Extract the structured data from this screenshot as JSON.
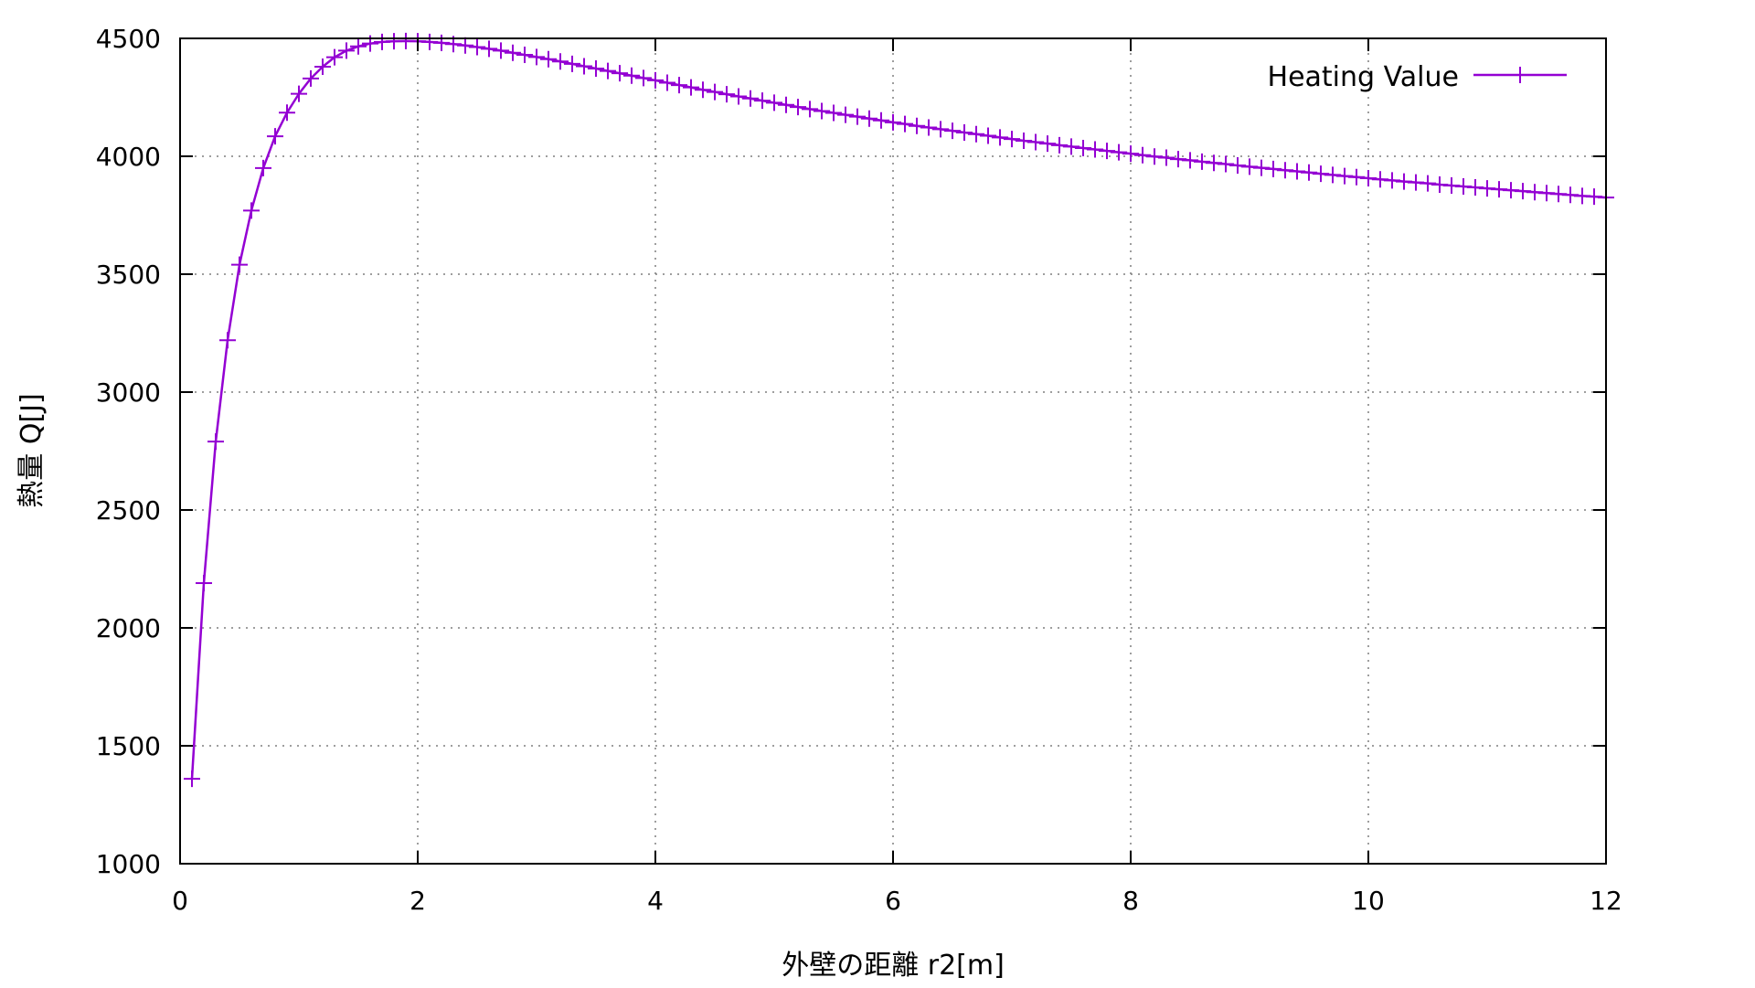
{
  "chart_data": {
    "type": "line",
    "title": "",
    "xlabel": "外壁の距離 r2[m]",
    "ylabel": "熱量 Q[J]",
    "xlim": [
      0,
      12
    ],
    "ylim": [
      1000,
      4500
    ],
    "xticks": [
      0,
      2,
      4,
      6,
      8,
      10,
      12
    ],
    "yticks": [
      1000,
      1500,
      2000,
      2500,
      3000,
      3500,
      4000,
      4500
    ],
    "xtick_labels": [
      "0",
      "2",
      "4",
      "6",
      "8",
      "10",
      "12"
    ],
    "ytick_labels": [
      "1000",
      "1500",
      "2000",
      "2500",
      "3000",
      "3500",
      "4000",
      "4500"
    ],
    "grid": true,
    "legend_position": "top-right",
    "series": [
      {
        "name": "Heating Value",
        "color": "#9400d3",
        "marker": "plus",
        "x": [
          0.1,
          0.2,
          0.3,
          0.4,
          0.5,
          0.6,
          0.7,
          0.8,
          0.9,
          1.0,
          1.1,
          1.2,
          1.3,
          1.4,
          1.5,
          1.6,
          1.7,
          1.8,
          1.9,
          2.0,
          2.1,
          2.2,
          2.3,
          2.4,
          2.5,
          2.6,
          2.7,
          2.8,
          2.9,
          3.0,
          3.1,
          3.2,
          3.3,
          3.4,
          3.5,
          3.6,
          3.7,
          3.8,
          3.9,
          4.0,
          4.1,
          4.2,
          4.3,
          4.4,
          4.5,
          4.6,
          4.7,
          4.8,
          4.9,
          5.0,
          5.1,
          5.2,
          5.3,
          5.4,
          5.5,
          5.6,
          5.7,
          5.8,
          5.9,
          6.0,
          6.1,
          6.2,
          6.3,
          6.4,
          6.5,
          6.6,
          6.7,
          6.8,
          6.9,
          7.0,
          7.1,
          7.2,
          7.3,
          7.4,
          7.5,
          7.6,
          7.7,
          7.8,
          7.9,
          8.0,
          8.1,
          8.2,
          8.3,
          8.4,
          8.5,
          8.6,
          8.7,
          8.8,
          8.9,
          9.0,
          9.1,
          9.2,
          9.3,
          9.4,
          9.5,
          9.6,
          9.7,
          9.8,
          9.9,
          10.0,
          10.1,
          10.2,
          10.3,
          10.4,
          10.5,
          10.6,
          10.7,
          10.8,
          10.9,
          11.0,
          11.1,
          11.2,
          11.3,
          11.4,
          11.5,
          11.6,
          11.7,
          11.8,
          11.9,
          12.0
        ],
        "y": [
          1360,
          2190,
          2790,
          3220,
          3540,
          3770,
          3950,
          4085,
          4185,
          4265,
          4330,
          4380,
          4420,
          4448,
          4466,
          4478,
          4485,
          4488,
          4489,
          4488,
          4485,
          4481,
          4476,
          4470,
          4463,
          4456,
          4448,
          4439,
          4430,
          4421,
          4412,
          4402,
          4392,
          4382,
          4372,
          4362,
          4352,
          4342,
          4332,
          4322,
          4312,
          4302,
          4292,
          4282,
          4273,
          4263,
          4254,
          4245,
          4236,
          4227,
          4218,
          4209,
          4200,
          4192,
          4184,
          4176,
          4168,
          4160,
          4152,
          4144,
          4137,
          4129,
          4122,
          4115,
          4108,
          4101,
          4094,
          4087,
          4080,
          4073,
          4066,
          4060,
          4054,
          4047,
          4041,
          4035,
          4029,
          4023,
          4017,
          4011,
          4005,
          3999,
          3994,
          3988,
          3983,
          3977,
          3972,
          3967,
          3961,
          3956,
          3951,
          3946,
          3941,
          3936,
          3931,
          3926,
          3921,
          3916,
          3912,
          3907,
          3902,
          3898,
          3893,
          3889,
          3885,
          3880,
          3876,
          3872,
          3868,
          3864,
          3860,
          3856,
          3852,
          3848,
          3844,
          3840,
          3836,
          3832,
          3829,
          3825
        ]
      }
    ]
  }
}
